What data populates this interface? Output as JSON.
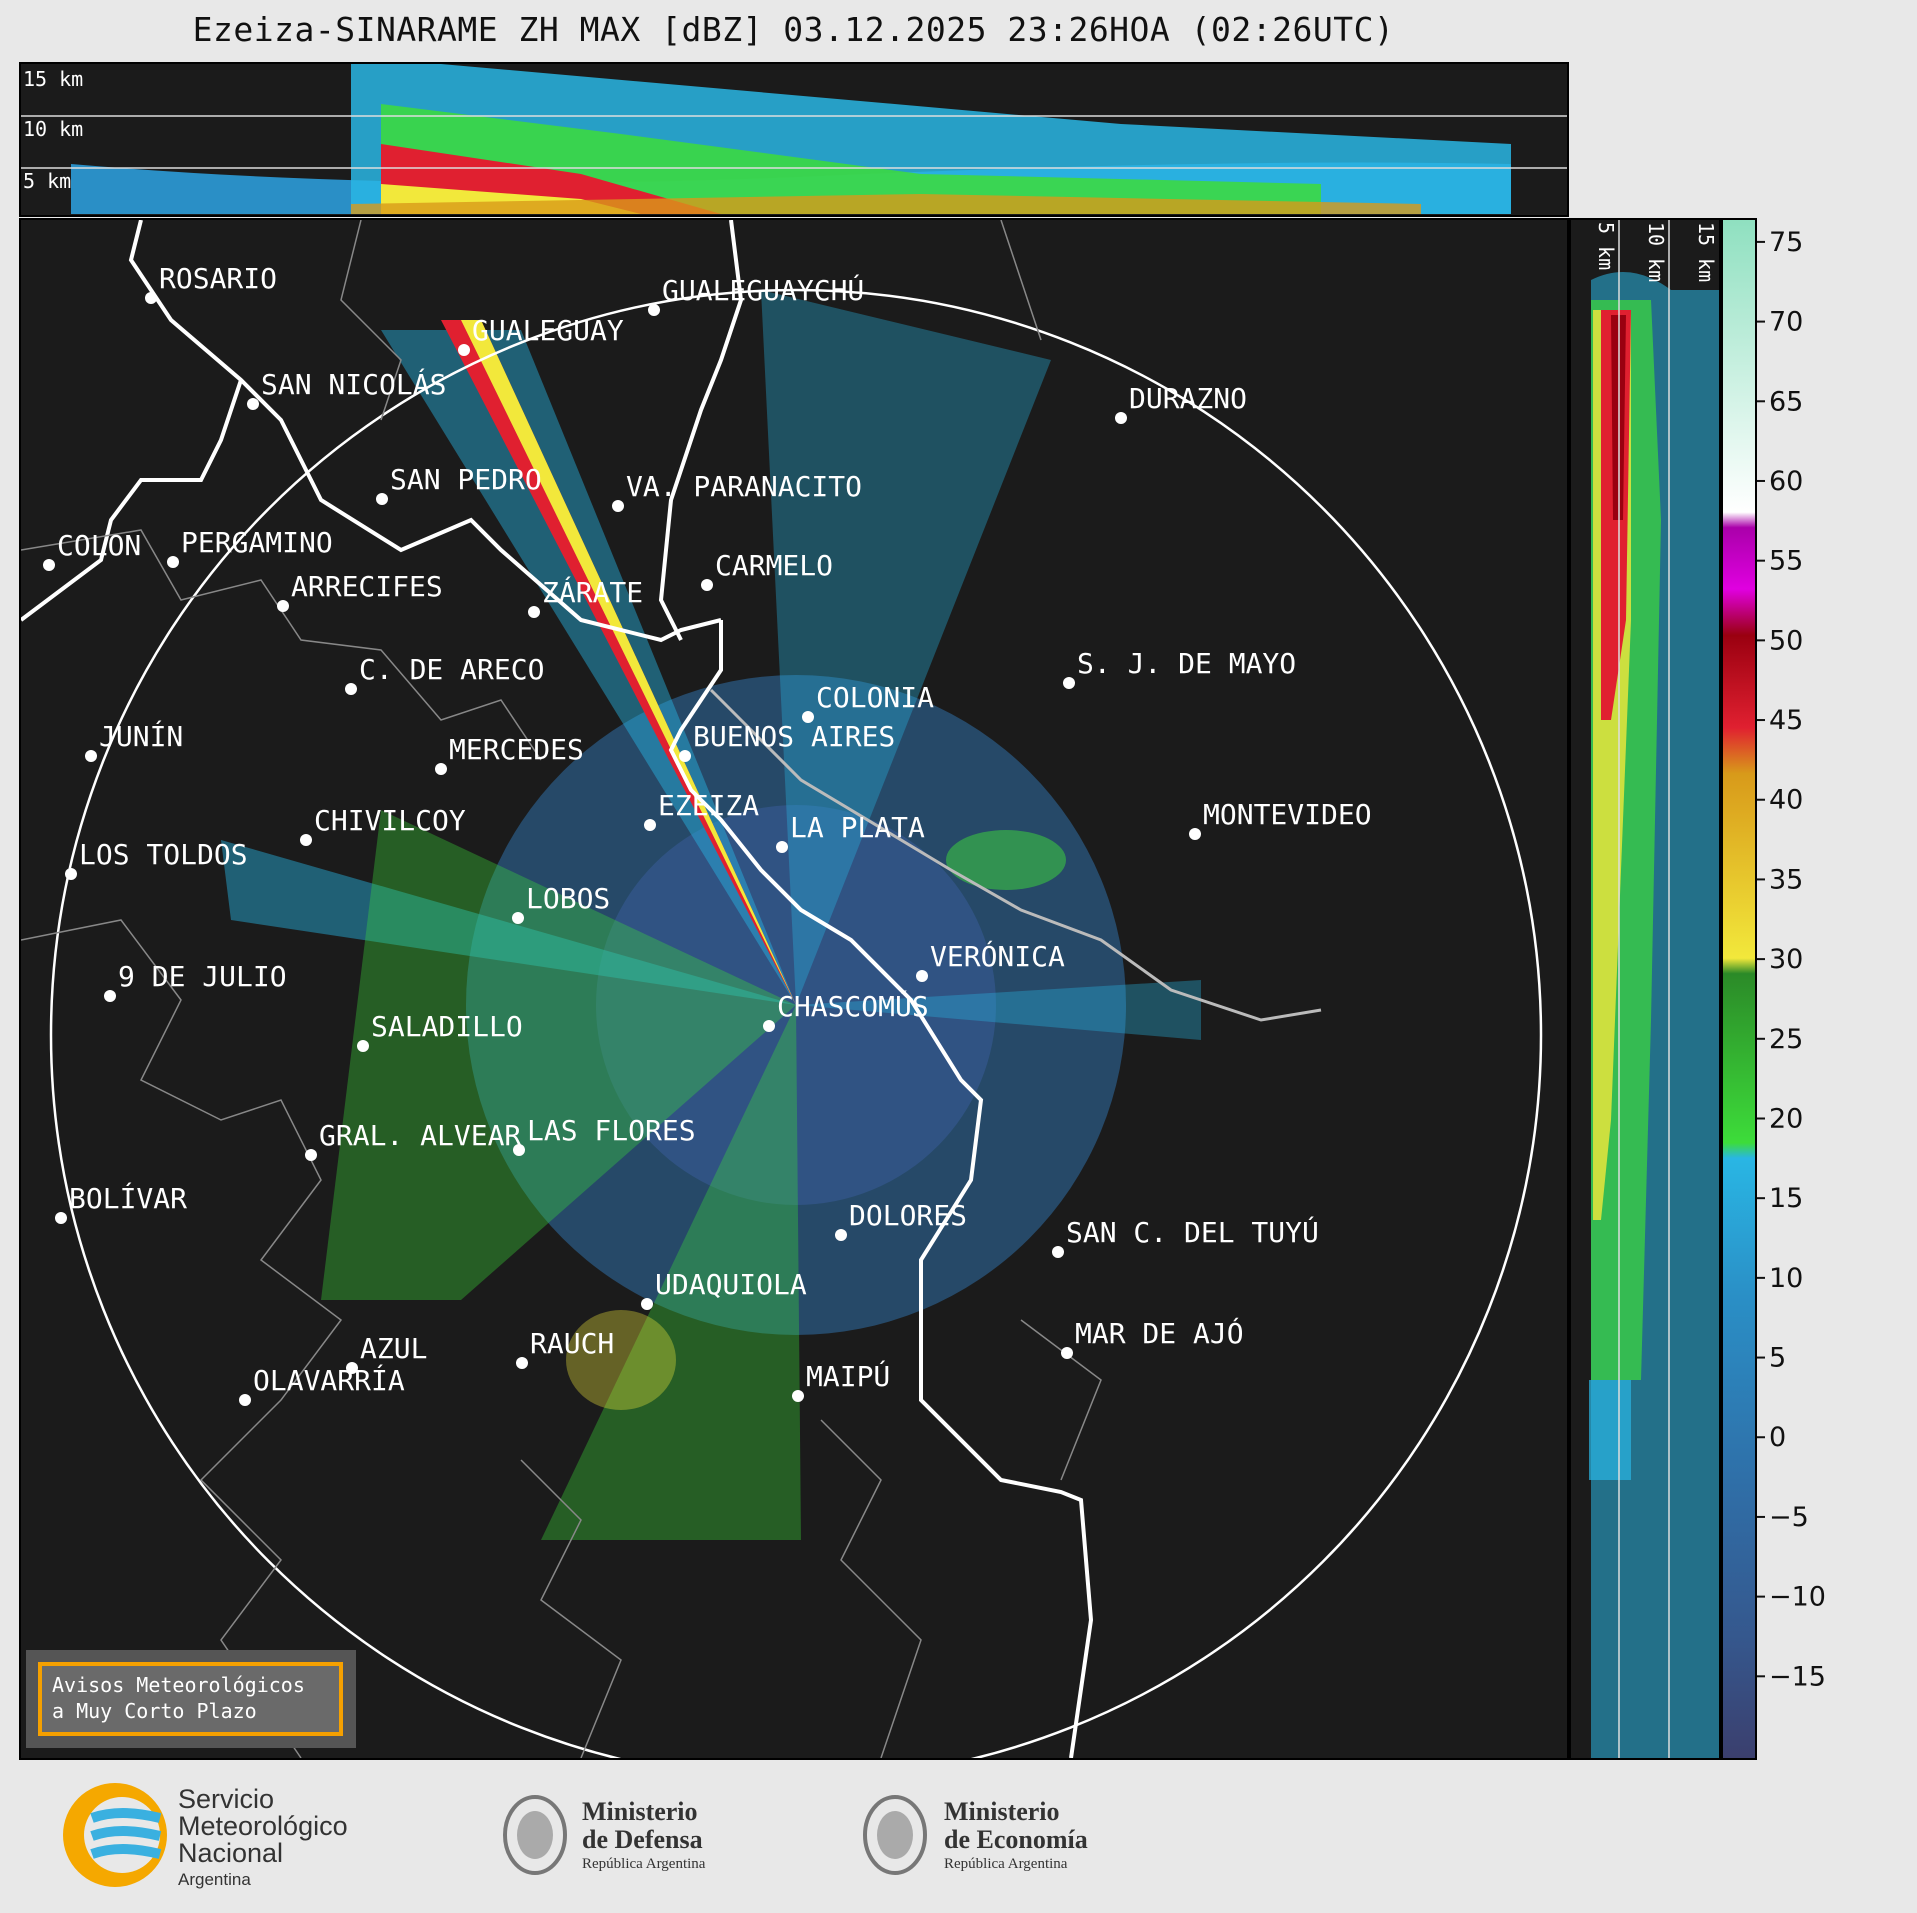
{
  "title": "Ezeiza-SINARAME ZH MAX [dBZ] 03.12.2025 23:26HOA (02:26UTC)",
  "top_profile": {
    "height_labels": [
      "15 km",
      "10 km",
      "5 km"
    ]
  },
  "side_profile": {
    "height_labels": [
      "5 km",
      "10 km",
      "15 km"
    ]
  },
  "colorbar": {
    "unit": "dBZ",
    "ticks": [
      "75",
      "70",
      "65",
      "60",
      "55",
      "50",
      "45",
      "40",
      "35",
      "30",
      "25",
      "20",
      "15",
      "10",
      "5",
      "0",
      "−5",
      "−10",
      "−15"
    ],
    "min": -20,
    "max": 76.5,
    "colors": {
      "c1": "#3b3f6e",
      "c2": "#35588e",
      "c3": "#2f6fa8",
      "c4": "#2a8fc6",
      "c5": "#29b6e4",
      "c6": "#3ddc3a",
      "c7": "#2b8a28",
      "c8": "#f2e83b",
      "c9": "#d89a1a",
      "c10": "#e02030",
      "c11": "#9a0010",
      "c12": "#e000e0",
      "c13": "#ffffff",
      "c14": "#8fe0c0"
    }
  },
  "cities": [
    {
      "name": "ROSARIO"
    },
    {
      "name": "GUALEGUAYCHÚ"
    },
    {
      "name": "GUALEGUAY"
    },
    {
      "name": "SAN NICOLÁS"
    },
    {
      "name": "DURAZNO"
    },
    {
      "name": "SAN PEDRO"
    },
    {
      "name": "VA. PARANACITO"
    },
    {
      "name": "COLON"
    },
    {
      "name": "PERGAMINO"
    },
    {
      "name": "CARMELO"
    },
    {
      "name": "ARRECIFES"
    },
    {
      "name": "ZÁRATE"
    },
    {
      "name": "S. J. DE MAYO"
    },
    {
      "name": "C. DE ARECO"
    },
    {
      "name": "COLONIA"
    },
    {
      "name": "JUNÍN"
    },
    {
      "name": "BUENOS AIRES"
    },
    {
      "name": "MERCEDES"
    },
    {
      "name": "MONTEVIDEO"
    },
    {
      "name": "EZEIZA"
    },
    {
      "name": "CHIVILCOY"
    },
    {
      "name": "LA PLATA"
    },
    {
      "name": "LOS TOLDOS"
    },
    {
      "name": "LOBOS"
    },
    {
      "name": "VERÓNICA"
    },
    {
      "name": "9 DE JULIO"
    },
    {
      "name": "CHASCOMÚS"
    },
    {
      "name": "SALADILLO"
    },
    {
      "name": "GRAL. ALVEAR"
    },
    {
      "name": "LAS FLORES"
    },
    {
      "name": "BOLÍVAR"
    },
    {
      "name": "DOLORES"
    },
    {
      "name": "SAN C. DEL TUYÚ"
    },
    {
      "name": "UDAQUIOLA"
    },
    {
      "name": "RAUCH"
    },
    {
      "name": "AZUL"
    },
    {
      "name": "MAR DE AJÓ"
    },
    {
      "name": "OLAVARRÍA"
    },
    {
      "name": "MAIPÚ"
    }
  ],
  "warning_box": {
    "line1": "Avisos Meteorológicos",
    "line2": "a Muy Corto Plazo"
  },
  "footer": {
    "smn": {
      "line1": "Servicio",
      "line2": "Meteorológico",
      "line3": "Nacional",
      "line4": "Argentina"
    },
    "defensa": {
      "line1": "Ministerio",
      "line2": "de Defensa",
      "line3": "República Argentina"
    },
    "economia": {
      "line1": "Ministerio",
      "line2": "de Economía",
      "line3": "República Argentina"
    }
  }
}
